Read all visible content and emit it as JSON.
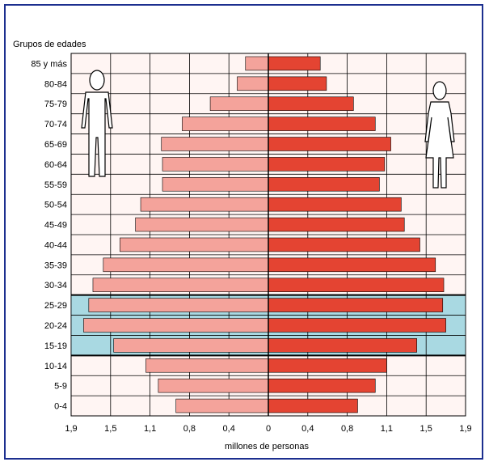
{
  "chart_data": {
    "type": "bar",
    "orientation": "horizontal-population-pyramid",
    "yaxis_title": "Grupos de edades",
    "xlabel": "millones de personas",
    "categories": [
      "85 y más",
      "80-84",
      "75-79",
      "70-74",
      "65-69",
      "60-64",
      "55-59",
      "50-54",
      "45-49",
      "40-44",
      "35-39",
      "30-34",
      "25-29",
      "20-24",
      "15-19",
      "10-14",
      "5-9",
      "0-4"
    ],
    "xticks": [
      "1,9",
      "1,5",
      "1,1",
      "0,8",
      "0,4",
      "0",
      "0,4",
      "0,8",
      "1,1",
      "1,5",
      "1,9"
    ],
    "xlim": [
      -1.9,
      1.9
    ],
    "series": [
      {
        "side": "left",
        "color": "#f4a39b",
        "values": [
          0.22,
          0.3,
          0.56,
          0.83,
          1.03,
          1.02,
          1.02,
          1.23,
          1.28,
          1.43,
          1.59,
          1.69,
          1.73,
          1.78,
          1.49,
          1.18,
          1.06,
          0.89
        ]
      },
      {
        "side": "right",
        "color": "#e44432",
        "values": [
          0.5,
          0.56,
          0.82,
          1.03,
          1.18,
          1.12,
          1.07,
          1.28,
          1.31,
          1.46,
          1.61,
          1.69,
          1.68,
          1.71,
          1.43,
          1.14,
          1.03,
          0.86
        ]
      }
    ],
    "highlight_groups": [
      "25-29",
      "20-24",
      "15-19"
    ],
    "highlight_color": "#a9d9e2",
    "plot_background": "#fff5f3",
    "grid": true
  },
  "figures": {
    "left": "male-figure-icon",
    "right": "female-figure-icon"
  }
}
